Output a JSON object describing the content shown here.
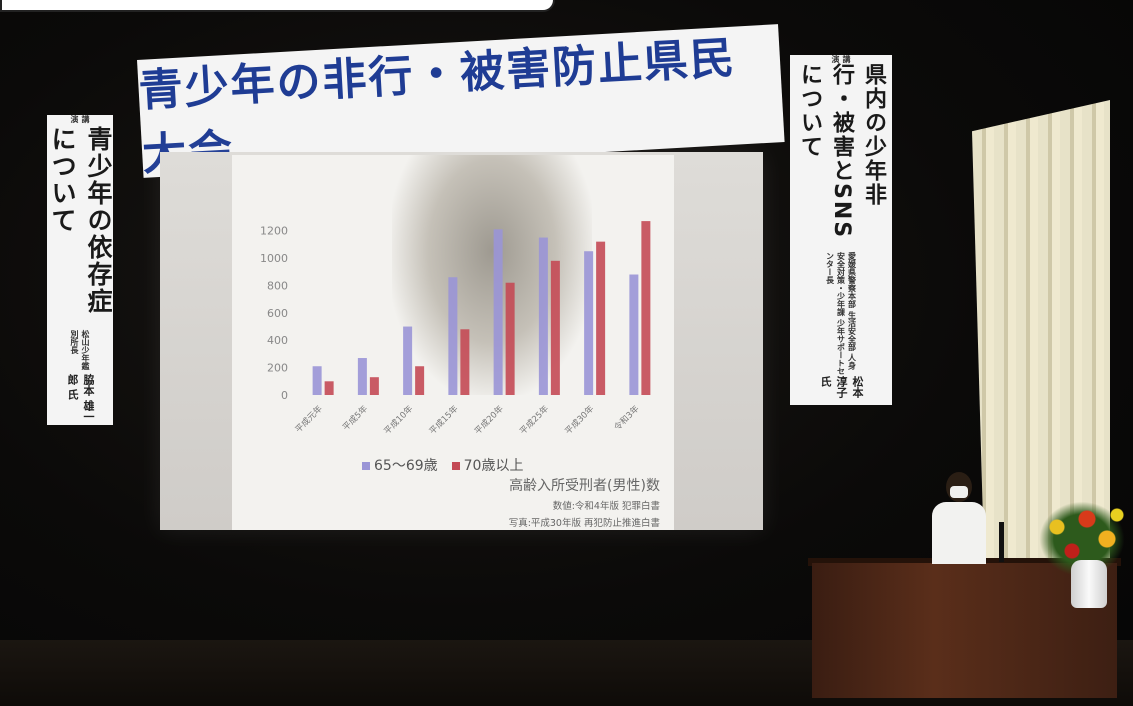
{
  "title_banner": "青少年の非行・被害防止県民大会",
  "left_banner": {
    "tag": "講演",
    "main": "青少年の依存症について",
    "affiliation": "松山少年鑑別所長",
    "speaker": "脇本 雄一郎 氏"
  },
  "right_banner": {
    "tag": "講演",
    "main": "県内の少年非行・被害とSNSについて",
    "affiliation": "愛媛県警察本部 生活安全部 人身安全対策・少年課 少年サポートセンター長",
    "speaker": "松本 淳子 氏"
  },
  "slide": {
    "legend": [
      "65〜69歳",
      "70歳以上"
    ],
    "caption_title": "高齢入所受刑者(男性)数",
    "caption_source1": "数値:令和4年版 犯罪白書",
    "caption_source2": "写真:平成30年版 再犯防止推進白書"
  },
  "chart_data": {
    "type": "bar",
    "title": "高齢入所受刑者(男性)数",
    "categories": [
      "平成元年",
      "平成5年",
      "平成10年",
      "平成15年",
      "平成20年",
      "平成25年",
      "平成30年",
      "令和3年"
    ],
    "series": [
      {
        "name": "65〜69歳",
        "values": [
          210,
          270,
          500,
          860,
          1210,
          1150,
          1050,
          880
        ],
        "color": "#9a95d6"
      },
      {
        "name": "70歳以上",
        "values": [
          100,
          130,
          210,
          480,
          820,
          980,
          1120,
          1270
        ],
        "color": "#c44a55"
      }
    ],
    "yticks": [
      0,
      200,
      400,
      600,
      800,
      1000,
      1200
    ],
    "ylim": [
      0,
      1300
    ],
    "grid": false,
    "legend_position": "bottom"
  }
}
